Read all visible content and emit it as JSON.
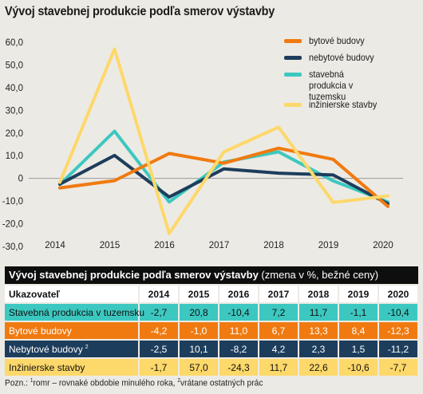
{
  "title": "Vývoj stavebnej produkcie podľa smerov výstavby",
  "colors": {
    "bytove": "#f07a10",
    "nebytove": "#1d3d5c",
    "tuzemsko": "#3cc8c0",
    "inzinierske": "#fdd86a",
    "table_row_bytove_text": "#ffffff",
    "table_row_nebytove_text": "#ffffff"
  },
  "legend": {
    "bytove": "bytové budovy",
    "nebytove": "nebytové budovy",
    "tuzemsko": "stavebná produkcia v tuzemsku",
    "inzinierske": "inžinierske stavby"
  },
  "chart_data": {
    "type": "line",
    "x": [
      "2014",
      "2015",
      "2016",
      "2017",
      "2018",
      "2019",
      "2020"
    ],
    "ylim": [
      -30,
      60
    ],
    "yticks": [
      "60,0",
      "50,0",
      "40,0",
      "30,0",
      "20,0",
      "10,0",
      "0",
      "-10,0",
      "-20,0",
      "-30,0"
    ],
    "ytick_values": [
      60,
      50,
      40,
      30,
      20,
      10,
      0,
      -10,
      -20,
      -30
    ],
    "grid": false,
    "legend_position": "top-right",
    "series": [
      {
        "key": "bytove",
        "name": "bytové budovy",
        "values": [
          -4.2,
          -1.0,
          11.0,
          6.7,
          13.3,
          8.4,
          -12.3
        ]
      },
      {
        "key": "nebytove",
        "name": "nebytové budovy",
        "values": [
          -2.5,
          10.1,
          -8.2,
          4.2,
          2.3,
          1.5,
          -11.2
        ]
      },
      {
        "key": "tuzemsko",
        "name": "stavebná produkcia v tuzemsku",
        "values": [
          -2.7,
          20.8,
          -10.4,
          7.2,
          11.7,
          -1.1,
          -10.4
        ]
      },
      {
        "key": "inzinierske",
        "name": "inžinierske stavby",
        "values": [
          -1.7,
          57.0,
          -24.3,
          11.7,
          22.6,
          -10.6,
          -7.7
        ]
      }
    ]
  },
  "table": {
    "title_bold": "Vývoj stavebnej produkcie podľa smerov výstavby",
    "title_rest": " (zmena v %, bežné ceny)",
    "header_label": "Ukazovateľ",
    "columns": [
      "2014",
      "2015",
      "2016",
      "2017",
      "2018",
      "2019",
      "2020"
    ],
    "rows": [
      {
        "key": "tuzemsko",
        "label": "Stavebná produkcia v tuzemsku",
        "sup": "",
        "values": [
          "-2,7",
          "20,8",
          "-10,4",
          "7,2",
          "11,7",
          "-1,1",
          "-10,4"
        ]
      },
      {
        "key": "bytove",
        "label": "Bytové budovy",
        "sup": "",
        "values": [
          "-4,2",
          "-1,0",
          "11,0",
          "6,7",
          "13,3",
          "8,4",
          "-12,3"
        ]
      },
      {
        "key": "nebytove",
        "label": "Nebytové budovy",
        "sup": "2",
        "values": [
          "-2,5",
          "10,1",
          "-8,2",
          "4,2",
          "2,3",
          "1,5",
          "-11,2"
        ]
      },
      {
        "key": "inzinierske",
        "label": "Inžinierske stavby",
        "sup": "",
        "values": [
          "-1,7",
          "57,0",
          "-24,3",
          "11,7",
          "22,6",
          "-10,6",
          "-7,7"
        ]
      }
    ]
  },
  "footnote": {
    "prefix": "Pozn.: ",
    "sup1": "1",
    "text1": "romr – rovnaké obdobie minulého roka, ",
    "sup2": "2",
    "text2": "vrátane ostatných prác"
  }
}
